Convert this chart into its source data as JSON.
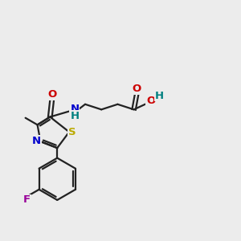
{
  "bg_color": "#ececec",
  "bond_color": "#222222",
  "bond_width": 1.6,
  "atom_colors": {
    "O": "#cc0000",
    "N": "#0000cc",
    "S": "#bbaa00",
    "F": "#990099",
    "C": "#222222",
    "H": "#008080"
  },
  "figsize": [
    3.0,
    3.0
  ],
  "dpi": 100,
  "xlim": [
    0,
    10
  ],
  "ylim": [
    0,
    10
  ],
  "font_size": 9.5
}
